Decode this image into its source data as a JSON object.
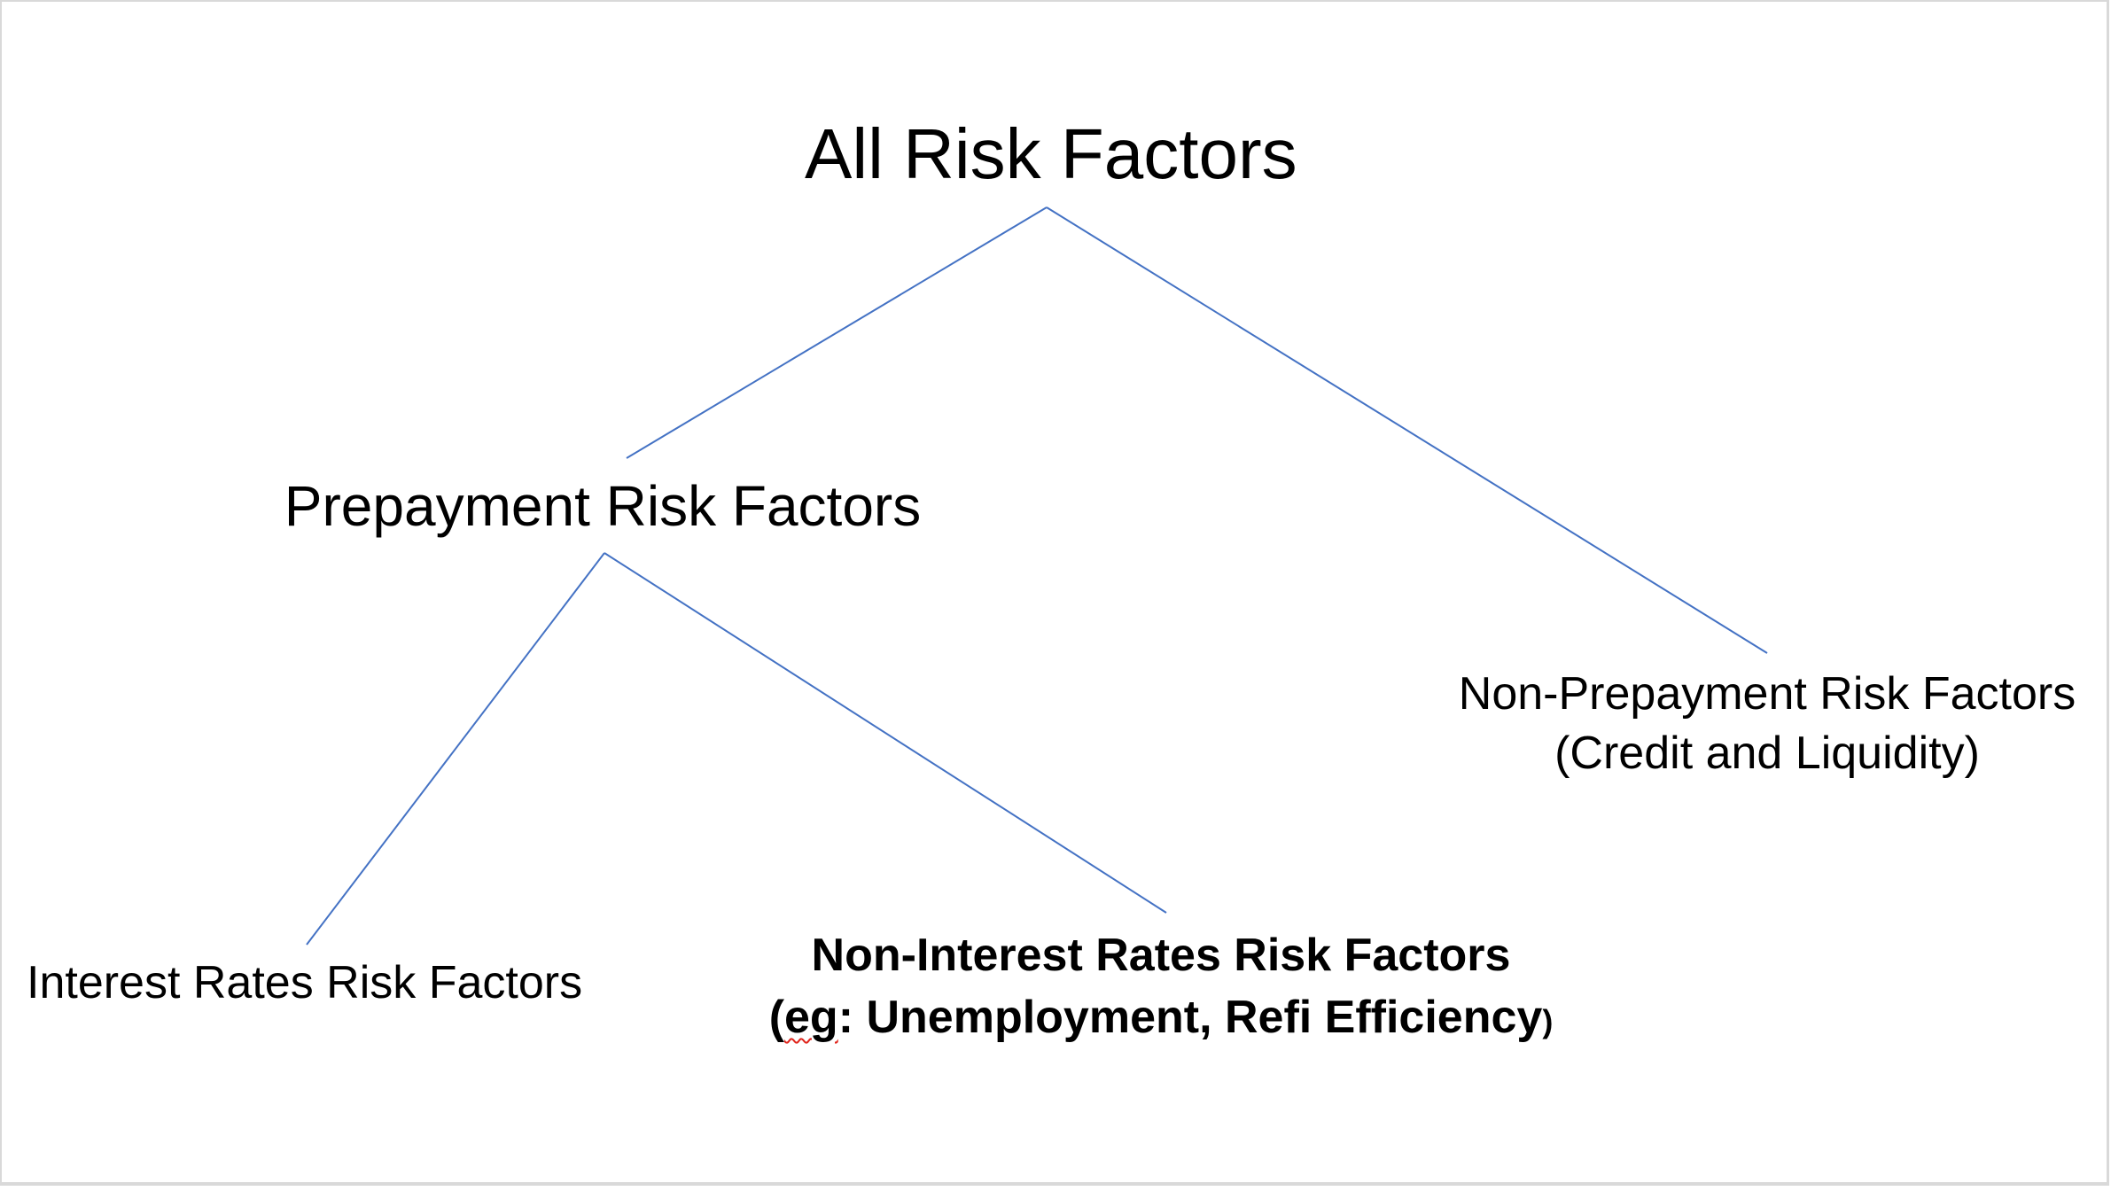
{
  "diagram": {
    "line_color": "#4472c4",
    "root": {
      "label": "All Risk Factors"
    },
    "prepayment": {
      "label": "Prepayment Risk Factors"
    },
    "non_prepayment": {
      "line1": "Non-Prepayment Risk Factors",
      "line2": "(Credit and Liquidity)"
    },
    "interest_rates": {
      "label": "Interest Rates Risk Factors"
    },
    "non_interest_rates": {
      "line1": "Non-Interest Rates Risk Factors",
      "line2_open": "(",
      "line2_eg": "eg",
      "line2_rest": ": Unemployment, Refi Efficiency",
      "line2_close": ")"
    }
  }
}
